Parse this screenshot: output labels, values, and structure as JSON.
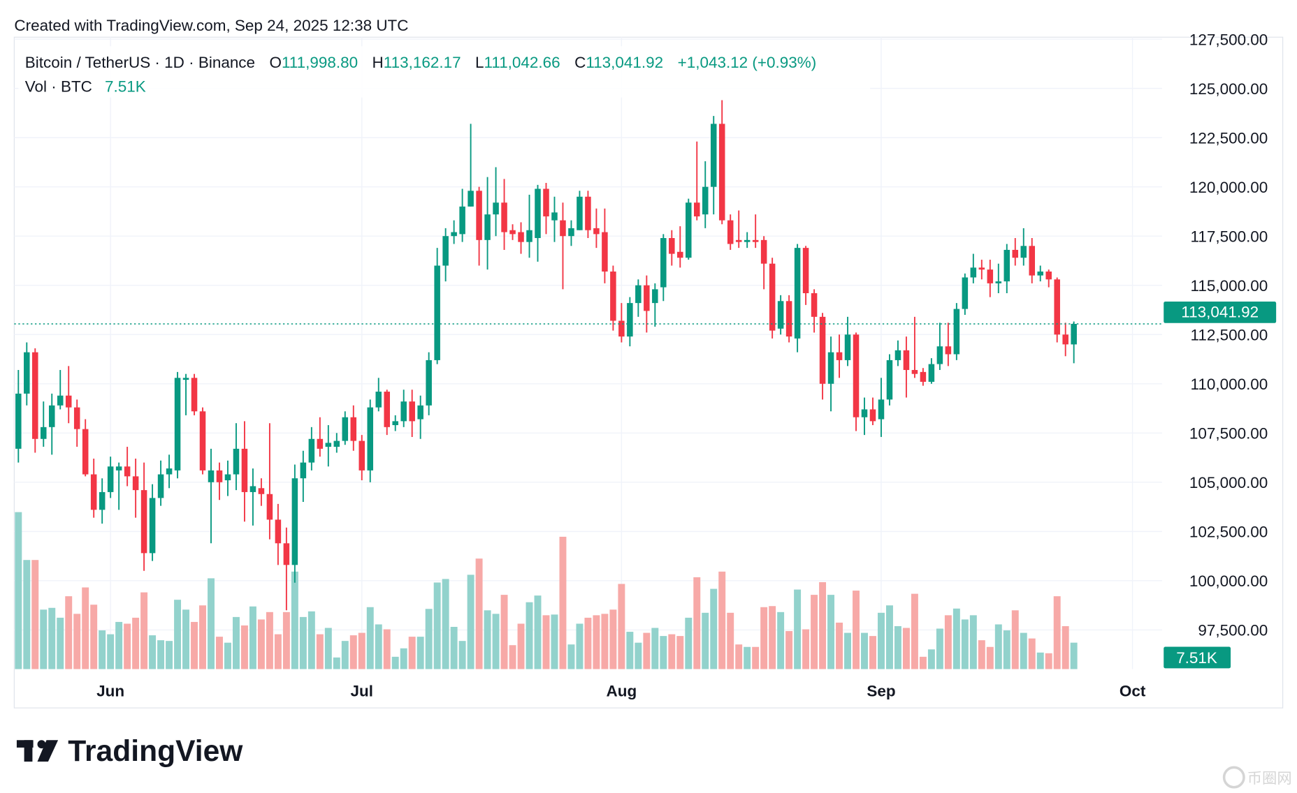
{
  "header": {
    "created_text": "Created with TradingView.com, Sep 24, 2025 12:38 UTC"
  },
  "legend": {
    "symbol": "Bitcoin / TetherUS · 1D · Binance",
    "o_label": "O",
    "o_value": "111,998.80",
    "h_label": "H",
    "h_value": "113,162.17",
    "l_label": "L",
    "l_value": "111,042.66",
    "c_label": "C",
    "c_value": "113,041.92",
    "change": "+1,043.12 (+0.93%)",
    "vol_label": "Vol · BTC",
    "vol_value": "7.51K"
  },
  "price_label": "113,041.92",
  "volume_label": "7.51K",
  "logo_text": "TradingView",
  "watermark_text": "币圈网",
  "colors": {
    "up": "#089981",
    "down": "#f23645",
    "up_vol": "#92d2cc",
    "down_vol": "#f7a9a7",
    "grid": "#f0f3fa"
  },
  "chart_data": {
    "type": "candlestick",
    "title": "Bitcoin / TetherUS · 1D · Binance",
    "start_date": "2025-05-21",
    "end_date": "2025-09-24",
    "price_unit": "USDT (thousands)",
    "volume_unit": "K BTC",
    "ylim": [
      96,
      127.8
    ],
    "y_ticks": [
      {
        "value": 127.5,
        "label": "127,500.00"
      },
      {
        "value": 125,
        "label": "125,000.00"
      },
      {
        "value": 122.5,
        "label": "122,500.00"
      },
      {
        "value": 120,
        "label": "120,000.00"
      },
      {
        "value": 117.5,
        "label": "117,500.00"
      },
      {
        "value": 115,
        "label": "115,000.00"
      },
      {
        "value": 112.5,
        "label": "112,500.00"
      },
      {
        "value": 110,
        "label": "110,000.00"
      },
      {
        "value": 107.5,
        "label": "107,500.00"
      },
      {
        "value": 105,
        "label": "105,000.00"
      },
      {
        "value": 102.5,
        "label": "102,500.00"
      },
      {
        "value": 100,
        "label": "100,000.00"
      },
      {
        "value": 97.5,
        "label": "97,500.00"
      }
    ],
    "x_ticks": [
      {
        "label": "Jun",
        "day_index": 11
      },
      {
        "label": "Jul",
        "day_index": 41
      },
      {
        "label": "Aug",
        "day_index": 72
      },
      {
        "label": "Sep",
        "day_index": 103
      },
      {
        "label": "Oct",
        "day_index": 133
      }
    ],
    "last_close": 113.04192,
    "ohlc": [
      [
        106.7,
        110.7,
        106.0,
        109.5
      ],
      [
        109.5,
        112.1,
        108.9,
        111.6
      ],
      [
        111.6,
        111.8,
        106.5,
        107.2
      ],
      [
        107.2,
        109.1,
        106.8,
        107.8
      ],
      [
        107.8,
        109.5,
        106.4,
        108.9
      ],
      [
        108.9,
        110.7,
        108.7,
        109.4
      ],
      [
        109.4,
        110.9,
        108.0,
        108.8
      ],
      [
        108.8,
        109.2,
        106.8,
        107.7
      ],
      [
        107.7,
        108.2,
        105.3,
        105.4
      ],
      [
        105.4,
        106.2,
        103.2,
        103.6
      ],
      [
        103.6,
        105.2,
        102.9,
        104.5
      ],
      [
        104.5,
        106.3,
        104.2,
        105.8
      ],
      [
        105.6,
        106.0,
        103.6,
        105.8
      ],
      [
        105.8,
        106.8,
        104.8,
        105.3
      ],
      [
        105.3,
        106.2,
        103.2,
        104.6
      ],
      [
        104.6,
        106.0,
        100.5,
        101.4
      ],
      [
        101.4,
        104.9,
        101.0,
        104.2
      ],
      [
        104.2,
        106.1,
        103.8,
        105.4
      ],
      [
        105.4,
        106.4,
        104.7,
        105.7
      ],
      [
        105.6,
        110.6,
        105.2,
        110.3
      ],
      [
        110.2,
        110.5,
        108.4,
        110.3
      ],
      [
        110.3,
        110.5,
        108.4,
        108.6
      ],
      [
        108.6,
        108.8,
        105.4,
        105.6
      ],
      [
        105.0,
        106.7,
        101.9,
        105.6
      ],
      [
        105.6,
        106.0,
        104.1,
        105.0
      ],
      [
        105.1,
        106.1,
        104.3,
        105.4
      ],
      [
        105.4,
        108.0,
        104.6,
        106.7
      ],
      [
        106.7,
        108.1,
        103.0,
        104.5
      ],
      [
        104.5,
        105.7,
        102.8,
        104.8
      ],
      [
        104.7,
        105.2,
        103.8,
        104.4
      ],
      [
        104.4,
        108.0,
        102.1,
        103.1
      ],
      [
        103.1,
        103.9,
        100.8,
        101.9
      ],
      [
        101.9,
        102.7,
        98.5,
        100.8
      ],
      [
        100.8,
        105.9,
        99.9,
        105.2
      ],
      [
        105.2,
        106.6,
        104.0,
        106.0
      ],
      [
        106.0,
        107.8,
        105.6,
        107.2
      ],
      [
        107.2,
        108.3,
        106.3,
        106.7
      ],
      [
        106.8,
        107.9,
        105.8,
        107.0
      ],
      [
        106.8,
        107.5,
        106.5,
        107.1
      ],
      [
        107.1,
        108.6,
        106.9,
        108.3
      ],
      [
        108.3,
        108.9,
        106.6,
        107.1
      ],
      [
        107.1,
        107.4,
        105.1,
        105.6
      ],
      [
        105.6,
        109.2,
        105.0,
        108.8
      ],
      [
        108.8,
        110.3,
        108.6,
        109.6
      ],
      [
        109.6,
        109.7,
        107.4,
        107.8
      ],
      [
        107.9,
        108.4,
        107.6,
        108.1
      ],
      [
        108.1,
        109.7,
        107.8,
        109.1
      ],
      [
        109.1,
        109.7,
        107.3,
        108.1
      ],
      [
        108.2,
        109.4,
        107.2,
        108.9
      ],
      [
        108.9,
        111.6,
        108.4,
        111.2
      ],
      [
        111.2,
        116.9,
        111.0,
        116.0
      ],
      [
        116.0,
        117.9,
        115.2,
        117.5
      ],
      [
        117.5,
        118.3,
        117.1,
        117.7
      ],
      [
        117.6,
        119.9,
        117.2,
        119.0
      ],
      [
        119.0,
        123.2,
        119.0,
        119.8
      ],
      [
        119.8,
        120.0,
        116.0,
        117.3
      ],
      [
        117.3,
        120.5,
        115.8,
        118.6
      ],
      [
        118.6,
        121.0,
        117.5,
        119.2
      ],
      [
        119.2,
        120.4,
        116.8,
        117.7
      ],
      [
        117.8,
        118.1,
        117.3,
        117.6
      ],
      [
        117.7,
        118.2,
        116.6,
        117.2
      ],
      [
        117.2,
        119.6,
        116.4,
        117.8
      ],
      [
        117.4,
        120.1,
        116.2,
        119.9
      ],
      [
        119.9,
        120.2,
        117.6,
        118.5
      ],
      [
        118.3,
        119.5,
        117.2,
        118.7
      ],
      [
        118.3,
        119.2,
        114.8,
        117.5
      ],
      [
        117.5,
        118.3,
        117.0,
        117.9
      ],
      [
        117.8,
        119.8,
        117.8,
        119.5
      ],
      [
        119.5,
        119.8,
        117.4,
        117.8
      ],
      [
        117.9,
        118.9,
        116.9,
        117.6
      ],
      [
        117.7,
        118.9,
        115.1,
        115.7
      ],
      [
        115.7,
        116.0,
        112.7,
        113.2
      ],
      [
        113.2,
        114.1,
        112.1,
        112.4
      ],
      [
        112.4,
        114.4,
        111.9,
        114.1
      ],
      [
        114.1,
        115.3,
        113.4,
        115.0
      ],
      [
        115.0,
        115.5,
        112.6,
        113.7
      ],
      [
        114.1,
        115.1,
        112.9,
        114.8
      ],
      [
        114.9,
        117.6,
        114.2,
        117.4
      ],
      [
        117.4,
        117.8,
        116.0,
        116.6
      ],
      [
        116.7,
        118.0,
        115.9,
        116.4
      ],
      [
        116.4,
        119.4,
        116.3,
        119.2
      ],
      [
        119.2,
        122.3,
        118.3,
        118.5
      ],
      [
        118.6,
        121.3,
        117.9,
        120.0
      ],
      [
        120.0,
        123.6,
        118.6,
        123.2
      ],
      [
        123.2,
        124.4,
        118.1,
        118.3
      ],
      [
        118.3,
        118.6,
        116.8,
        117.1
      ],
      [
        117.3,
        118.8,
        116.9,
        117.2
      ],
      [
        117.2,
        117.7,
        116.9,
        117.3
      ],
      [
        117.3,
        118.6,
        116.9,
        117.2
      ],
      [
        117.3,
        117.5,
        114.8,
        116.1
      ],
      [
        116.1,
        116.4,
        112.3,
        112.7
      ],
      [
        112.8,
        114.5,
        112.5,
        114.2
      ],
      [
        114.2,
        114.5,
        112.1,
        112.4
      ],
      [
        112.3,
        117.1,
        111.6,
        116.9
      ],
      [
        116.9,
        117.0,
        114.0,
        114.6
      ],
      [
        114.6,
        114.8,
        112.6,
        113.4
      ],
      [
        113.4,
        113.6,
        109.2,
        110.0
      ],
      [
        110.0,
        112.4,
        108.6,
        111.6
      ],
      [
        111.6,
        112.5,
        110.3,
        111.2
      ],
      [
        111.2,
        113.4,
        110.9,
        112.5
      ],
      [
        112.5,
        112.6,
        107.6,
        108.3
      ],
      [
        108.3,
        109.3,
        107.4,
        108.7
      ],
      [
        108.7,
        109.3,
        107.9,
        108.1
      ],
      [
        108.2,
        110.3,
        107.3,
        109.2
      ],
      [
        109.2,
        111.5,
        108.9,
        111.2
      ],
      [
        111.2,
        112.2,
        110.9,
        111.7
      ],
      [
        111.7,
        112.4,
        109.3,
        110.7
      ],
      [
        110.7,
        113.4,
        110.3,
        110.5
      ],
      [
        110.6,
        110.8,
        109.9,
        110.1
      ],
      [
        110.1,
        111.3,
        110.0,
        111.0
      ],
      [
        111.0,
        113.1,
        110.7,
        111.9
      ],
      [
        111.9,
        113.1,
        110.9,
        111.5
      ],
      [
        111.5,
        114.1,
        111.2,
        113.8
      ],
      [
        113.8,
        115.6,
        113.5,
        115.4
      ],
      [
        115.4,
        116.6,
        115.1,
        115.9
      ],
      [
        115.9,
        116.3,
        115.3,
        115.8
      ],
      [
        115.8,
        116.3,
        114.4,
        115.1
      ],
      [
        115.1,
        116.1,
        114.6,
        115.2
      ],
      [
        115.2,
        117.1,
        114.6,
        116.8
      ],
      [
        116.8,
        117.4,
        116.0,
        116.4
      ],
      [
        116.4,
        117.9,
        116.0,
        117.0
      ],
      [
        117.0,
        117.4,
        115.1,
        115.5
      ],
      [
        115.5,
        116.0,
        115.2,
        115.7
      ],
      [
        115.7,
        115.8,
        114.9,
        115.3
      ],
      [
        115.3,
        115.4,
        112.1,
        112.5
      ],
      [
        112.5,
        113.1,
        111.4,
        112.0
      ],
      [
        111.9988,
        113.16217,
        111.04266,
        113.04192
      ]
    ],
    "volume": [
      44.6,
      31.0,
      31.0,
      16.9,
      17.4,
      14.6,
      20.7,
      15.7,
      23.2,
      18.3,
      11.0,
      9.9,
      13.4,
      12.9,
      14.6,
      21.8,
      9.6,
      8.2,
      8.0,
      19.7,
      16.9,
      13.4,
      18.1,
      25.8,
      9.2,
      7.5,
      14.8,
      12.4,
      17.8,
      14.1,
      16.2,
      9.9,
      16.2,
      27.7,
      14.8,
      16.4,
      9.9,
      11.7,
      3.3,
      8.0,
      9.6,
      10.3,
      17.6,
      12.7,
      11.3,
      3.5,
      5.9,
      9.2,
      9.2,
      17.1,
      24.6,
      25.6,
      12.0,
      8.0,
      26.8,
      31.4,
      16.7,
      15.7,
      21.1,
      6.8,
      12.9,
      19.0,
      20.9,
      15.3,
      15.5,
      37.6,
      7.0,
      12.9,
      14.6,
      15.3,
      15.7,
      16.9,
      24.2,
      10.6,
      7.5,
      10.3,
      11.7,
      9.4,
      9.9,
      9.4,
      14.6,
      26.1,
      16.0,
      22.8,
      27.7,
      16.0,
      7.0,
      6.3,
      6.3,
      17.6,
      17.9,
      16.2,
      10.8,
      22.6,
      11.3,
      21.1,
      24.7,
      21.1,
      13.2,
      10.3,
      22.3,
      10.3,
      9.4,
      16.0,
      18.1,
      12.2,
      11.7,
      21.4,
      3.5,
      5.6,
      11.5,
      15.3,
      17.2,
      14.1,
      15.3,
      8.2,
      6.3,
      12.7,
      11.0,
      16.7,
      10.3,
      8.7,
      4.7,
      4.5,
      20.7,
      12.2,
      7.51
    ]
  }
}
